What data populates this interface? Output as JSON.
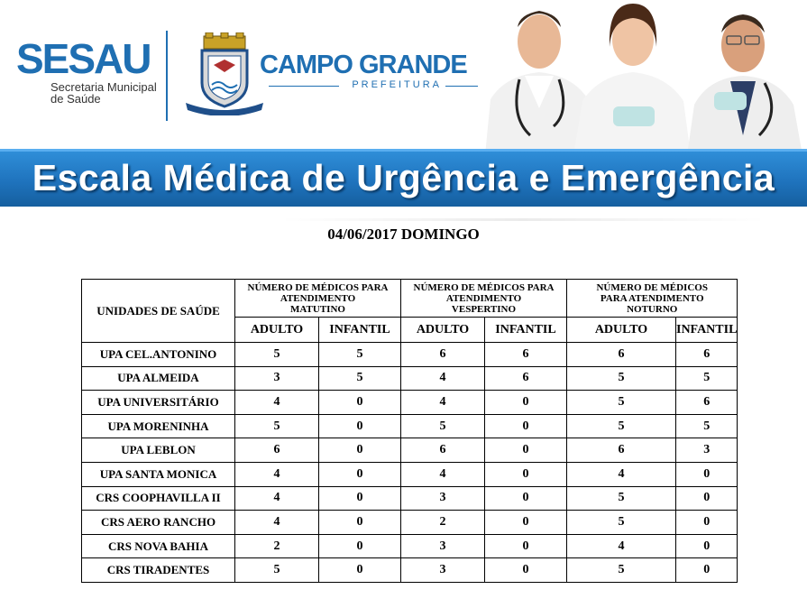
{
  "header": {
    "sesau": {
      "name": "SESAU",
      "subtitle_line1": "Secretaria Municipal",
      "subtitle_line2": "de Saúde"
    },
    "city": {
      "name": "CAMPO GRANDE",
      "subtitle": "PREFEITURA"
    },
    "banner_title": "Escala Médica de Urgência e Emergência"
  },
  "date_line": "04/06/2017 DOMINGO",
  "table": {
    "units_header": "UNIDADES DE SAÚDE",
    "groups": [
      {
        "line1": "NÚMERO DE MÉDICOS PARA",
        "line2": "ATENDIMENTO",
        "line3": "MATUTINO"
      },
      {
        "line1": "NÚMERO DE MÉDICOS PARA",
        "line2": "ATENDIMENTO",
        "line3": "VESPERTINO"
      },
      {
        "line1": "NÚMERO DE MÉDICOS",
        "line2": "PARA ATENDIMENTO",
        "line3": "NOTURNO"
      }
    ],
    "sub_headers": [
      "ADULTO",
      "INFANTIL",
      "ADULTO",
      "INFANTIL",
      "ADULTO",
      "INFANTIL"
    ],
    "rows": [
      {
        "unit": "UPA CEL.ANTONINO",
        "values": [
          "5",
          "5",
          "6",
          "6",
          "6",
          "6"
        ]
      },
      {
        "unit": "UPA ALMEIDA",
        "values": [
          "3",
          "5",
          "4",
          "6",
          "5",
          "5"
        ]
      },
      {
        "unit": "UPA UNIVERSITÁRIO",
        "values": [
          "4",
          "0",
          "4",
          "0",
          "5",
          "6"
        ]
      },
      {
        "unit": "UPA MORENINHA",
        "values": [
          "5",
          "0",
          "5",
          "0",
          "5",
          "5"
        ]
      },
      {
        "unit": "UPA LEBLON",
        "values": [
          "6",
          "0",
          "6",
          "0",
          "6",
          "3"
        ]
      },
      {
        "unit": "UPA SANTA MONICA",
        "values": [
          "4",
          "0",
          "4",
          "0",
          "4",
          "0"
        ]
      },
      {
        "unit": "CRS COOPHAVILLA II",
        "values": [
          "4",
          "0",
          "3",
          "0",
          "5",
          "0"
        ]
      },
      {
        "unit": "CRS AERO RANCHO",
        "values": [
          "4",
          "0",
          "2",
          "0",
          "5",
          "0"
        ]
      },
      {
        "unit": "CRS NOVA BAHIA",
        "values": [
          "2",
          "0",
          "3",
          "0",
          "4",
          "0"
        ]
      },
      {
        "unit": "CRS TIRADENTES",
        "values": [
          "5",
          "0",
          "3",
          "0",
          "5",
          "0"
        ]
      }
    ]
  },
  "colors": {
    "brand_blue": "#1f6fb2",
    "banner_blue": "#1f73bd",
    "gold": "#c9a227"
  },
  "icons": {
    "crest": "municipal-coat-of-arms-icon",
    "doctors": "doctors-photo"
  }
}
